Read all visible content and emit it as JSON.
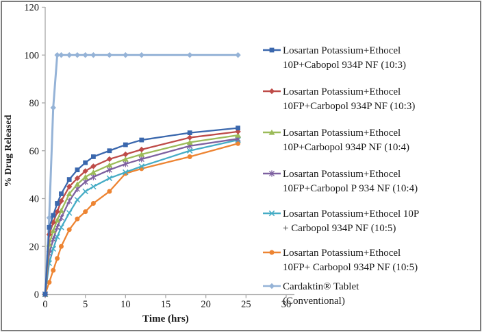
{
  "figure": {
    "background": "#ffffff",
    "border_color": "#7c7c7c",
    "axis_line_color": "#a8a8a8",
    "text_color": "#1a1a1a"
  },
  "chart_data": {
    "type": "line",
    "title": "",
    "xlabel": "Time (hrs)",
    "ylabel": "% Drug Released",
    "xlim": [
      0,
      30
    ],
    "ylim": [
      0,
      120
    ],
    "x_ticks": [
      0,
      5,
      10,
      15,
      20,
      25,
      30
    ],
    "y_ticks": [
      0,
      20,
      40,
      60,
      80,
      100,
      120
    ],
    "grid": false,
    "legend_position": "right",
    "x": [
      0,
      0.5,
      1,
      1.5,
      2,
      3,
      4,
      5,
      6,
      8,
      10,
      12,
      18,
      24
    ],
    "series": [
      {
        "name": "Losartan Potassium+Ethocel 10P+Cabopol 934P NF (10:3)",
        "legend_lines": [
          "Losartan Potassium+Ethocel",
          "10P+Cabopol 934P NF (10:3)"
        ],
        "color": "#3a67ad",
        "marker": "square",
        "values": [
          0,
          28,
          33,
          38,
          42,
          48,
          52,
          55,
          57.5,
          60,
          62.5,
          64.5,
          67.5,
          69.5
        ]
      },
      {
        "name": "Losartan Potassium+Ethocel 10FP+Carbopol 934P NF (10:3)",
        "legend_lines": [
          "Losartan Potassium+Ethocel",
          "10FP+Carbopol 934P NF (10:3)"
        ],
        "color": "#be4b48",
        "marker": "diamond",
        "values": [
          0,
          25,
          30,
          34.5,
          39,
          45,
          48.5,
          51.5,
          53.5,
          56.5,
          58.5,
          60.5,
          65.5,
          68
        ]
      },
      {
        "name": "Losartan Potassium+Ethocel 10P+Carbopol 934P NF (10:4)",
        "legend_lines": [
          "Losartan Potassium+Ethocel",
          "10P+Carbopol 934P NF (10:4)"
        ],
        "color": "#9bbb59",
        "marker": "triangle",
        "values": [
          0,
          21,
          26.5,
          31,
          35,
          42,
          46,
          49,
          51,
          54,
          56.5,
          58.5,
          63.5,
          66.5
        ]
      },
      {
        "name": "Losartan Potassium+Ethocel 10FP+Carbopol P 934 NF (10:4)",
        "legend_lines": [
          "Losartan Potassium+Ethocel",
          "10FP+Carbopol P 934 NF (10:4)"
        ],
        "color": "#7d60a0",
        "marker": "star",
        "values": [
          0,
          17,
          23,
          28,
          32,
          39,
          44,
          47,
          49,
          52,
          54.5,
          56.5,
          62,
          65
        ]
      },
      {
        "name": "Losartan Potassium+Ethocel 10P + Carbopol 934P NF (10:5)",
        "legend_lines": [
          "Losartan Potassium+Ethocel 10P",
          "+ Carbopol 934P NF (10:5)"
        ],
        "color": "#45acc5",
        "marker": "x",
        "values": [
          0,
          13,
          19,
          24,
          28,
          34,
          39.5,
          43,
          45,
          48.5,
          51,
          53.5,
          60,
          64.5
        ]
      },
      {
        "name": "Losartan Potassium+Ethocel 10FP+ Carbopol 934P NF (10:5)",
        "legend_lines": [
          "Losartan Potassium+Ethocel",
          "10FP+ Carbopol 934P NF (10:5)"
        ],
        "color": "#ed8432",
        "marker": "circle",
        "values": [
          0,
          5,
          10,
          15,
          20,
          27,
          31.5,
          34.5,
          38,
          43,
          50.5,
          52.5,
          57.5,
          63
        ]
      },
      {
        "name": "Cardaktin® Tablet (Conventional)",
        "legend_lines": [
          "Cardaktin® Tablet",
          "(Conventional)"
        ],
        "color": "#95b3d7",
        "marker": "diamond",
        "values": [
          0,
          32,
          78,
          100,
          100,
          100,
          100,
          100,
          100,
          100,
          100,
          100,
          100,
          100
        ]
      }
    ]
  }
}
